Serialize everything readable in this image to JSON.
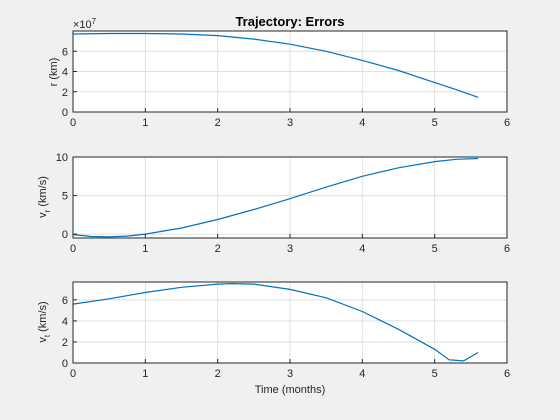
{
  "chart_data": [
    {
      "type": "line",
      "title": "Trajectory: Errors",
      "xlabel": "",
      "ylabel": "r (km)",
      "exponent_label": "×10",
      "exponent_power": "7",
      "xlim": [
        0,
        6
      ],
      "ylim": [
        0,
        8
      ],
      "xticks": [
        "0",
        "1",
        "2",
        "3",
        "4",
        "5",
        "6"
      ],
      "yticks": [
        "0",
        "2",
        "4",
        "6"
      ],
      "grid": true,
      "color": "#0072bd",
      "series": [
        {
          "x": [
            0,
            0.5,
            1.0,
            1.5,
            2.0,
            2.5,
            3.0,
            3.5,
            4.0,
            4.5,
            5.0,
            5.3,
            5.6
          ],
          "y": [
            7.7,
            7.75,
            7.75,
            7.7,
            7.55,
            7.2,
            6.7,
            6.0,
            5.1,
            4.1,
            2.9,
            2.2,
            1.45
          ]
        }
      ]
    },
    {
      "type": "line",
      "title": "",
      "xlabel": "",
      "ylabel_main": "v",
      "ylabel_sub": "r",
      "ylabel_suffix": " (km/s)",
      "xlim": [
        0,
        6
      ],
      "ylim": [
        -0.5,
        10
      ],
      "xticks": [
        "0",
        "1",
        "2",
        "3",
        "4",
        "5",
        "6"
      ],
      "yticks": [
        "0",
        "5",
        "10"
      ],
      "grid": true,
      "color": "#0072bd",
      "series": [
        {
          "x": [
            0,
            0.25,
            0.5,
            0.75,
            1.0,
            1.5,
            2.0,
            2.5,
            3.0,
            3.5,
            4.0,
            4.5,
            5.0,
            5.3,
            5.6
          ],
          "y": [
            -0.05,
            -0.3,
            -0.35,
            -0.25,
            0.0,
            0.8,
            1.9,
            3.2,
            4.6,
            6.1,
            7.5,
            8.6,
            9.4,
            9.7,
            9.8
          ]
        }
      ]
    },
    {
      "type": "line",
      "title": "",
      "xlabel": "Time (months)",
      "ylabel_main": "v",
      "ylabel_sub": "t",
      "ylabel_suffix": " (km/s)",
      "xlim": [
        0,
        6
      ],
      "ylim": [
        0,
        7.7
      ],
      "xticks": [
        "0",
        "1",
        "2",
        "3",
        "4",
        "5",
        "6"
      ],
      "yticks": [
        "0",
        "2",
        "4",
        "6"
      ],
      "grid": true,
      "color": "#0072bd",
      "series": [
        {
          "x": [
            0,
            0.5,
            1.0,
            1.5,
            2.0,
            2.2,
            2.5,
            3.0,
            3.5,
            4.0,
            4.5,
            5.0,
            5.2,
            5.4,
            5.6
          ],
          "y": [
            5.6,
            6.1,
            6.7,
            7.2,
            7.5,
            7.55,
            7.5,
            7.0,
            6.2,
            4.9,
            3.2,
            1.3,
            0.3,
            0.2,
            1.0
          ]
        }
      ]
    }
  ]
}
